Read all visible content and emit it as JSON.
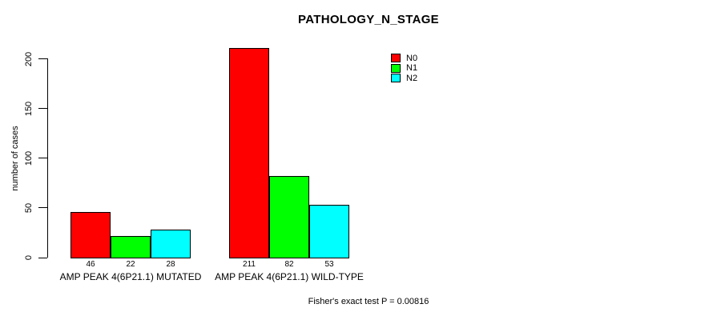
{
  "chart_data": {
    "type": "bar",
    "title": "PATHOLOGY_N_STAGE",
    "xlabel": "",
    "ylabel": "number of cases",
    "ylim": [
      0,
      200
    ],
    "yticks": [
      0,
      50,
      100,
      150,
      200
    ],
    "grid": false,
    "legend_position": "top-right",
    "categories": [
      "AMP PEAK 4(6P21.1) MUTATED",
      "AMP PEAK 4(6P21.1) WILD-TYPE"
    ],
    "series": [
      {
        "name": "N0",
        "color": "#ff0000",
        "values": [
          46,
          211
        ]
      },
      {
        "name": "N1",
        "color": "#00ff00",
        "values": [
          22,
          82
        ]
      },
      {
        "name": "N2",
        "color": "#00ffff",
        "values": [
          28,
          53
        ]
      }
    ],
    "bar_value_labels": [
      [
        46,
        22,
        28
      ],
      [
        211,
        82,
        53
      ]
    ]
  },
  "annotation": "Fisher's exact test P = 0.00816"
}
